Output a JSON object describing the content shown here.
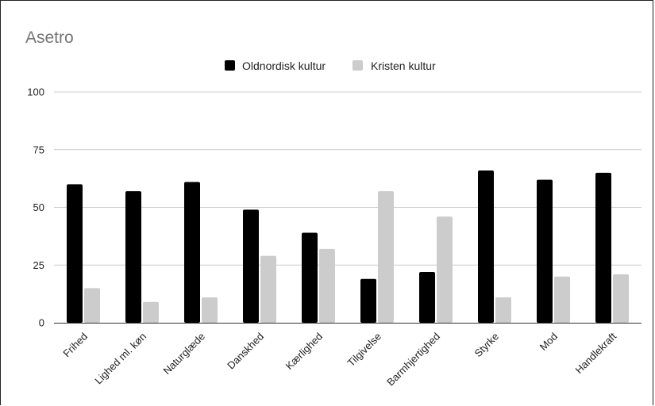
{
  "chart_data": {
    "type": "bar",
    "title": "Asetro",
    "xlabel": "",
    "ylabel": "",
    "ylim": [
      0,
      100
    ],
    "yticks": [
      0,
      25,
      50,
      75,
      100
    ],
    "grid": true,
    "legend_position": "top-center",
    "categories": [
      "Frihed",
      "Lighed ml. køn",
      "Naturglæde",
      "Danskhed",
      "Kærlighed",
      "Tilgivelse",
      "Barmhjertighed",
      "Styrke",
      "Mod",
      "Handlekraft"
    ],
    "series": [
      {
        "name": "Oldnordisk kultur",
        "color": "#000000",
        "values": [
          60,
          57,
          61,
          49,
          39,
          19,
          22,
          66,
          62,
          65
        ]
      },
      {
        "name": "Kristen kultur",
        "color": "#cccccc",
        "values": [
          15,
          9,
          11,
          29,
          32,
          57,
          46,
          11,
          20,
          21
        ]
      }
    ]
  }
}
